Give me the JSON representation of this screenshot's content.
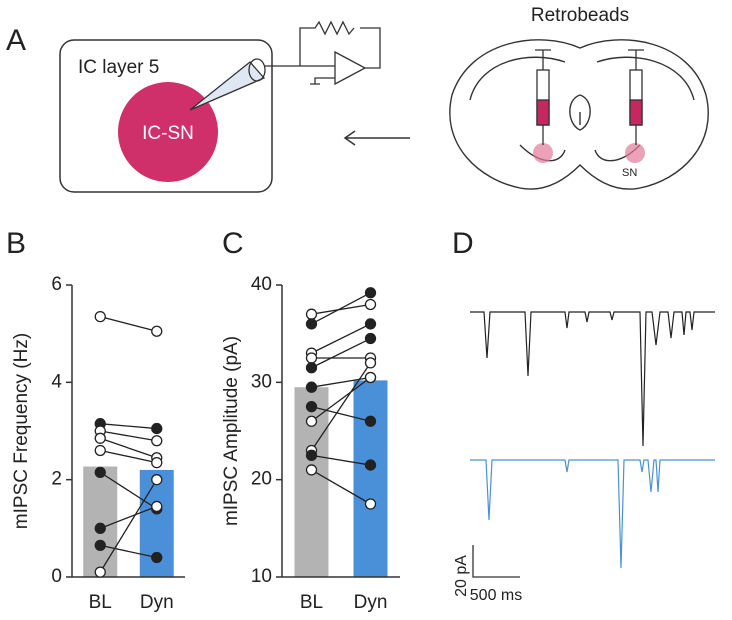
{
  "panels": {
    "a": "A",
    "b": "B",
    "c": "C",
    "d": "D"
  },
  "diagram": {
    "slice_label": "IC layer 5",
    "cell_label": "IC-SN",
    "injection_label": "Retrobeads",
    "region_label": "SN"
  },
  "traces": {
    "scale_y": "20 pA",
    "scale_x": "500 ms"
  },
  "chart_data": [
    {
      "type": "bar",
      "ylabel": "mIPSC Frequency (Hz)",
      "categories": [
        "BL",
        "Dyn"
      ],
      "values": [
        2.27,
        2.2
      ],
      "colors": [
        "#b3b3b3",
        "#4a90d9"
      ],
      "ylim": [
        0,
        6
      ],
      "yticks": [
        0,
        2,
        4,
        6
      ],
      "points": [
        [
          5.35,
          5.05
        ],
        [
          3.15,
          3.05
        ],
        [
          3.0,
          2.8
        ],
        [
          2.85,
          2.45
        ],
        [
          2.6,
          2.35
        ],
        [
          2.15,
          1.4
        ],
        [
          1.0,
          1.45
        ],
        [
          0.65,
          0.4
        ],
        [
          0.1,
          2.0
        ]
      ],
      "filled": [
        [
          false,
          false
        ],
        [
          true,
          true
        ],
        [
          false,
          false
        ],
        [
          false,
          false
        ],
        [
          false,
          false
        ],
        [
          true,
          true
        ],
        [
          true,
          false
        ],
        [
          true,
          true
        ],
        [
          false,
          false
        ]
      ]
    },
    {
      "type": "bar",
      "ylabel": "mIPSC Amplitude (pA)",
      "categories": [
        "BL",
        "Dyn"
      ],
      "values": [
        29.5,
        30.2
      ],
      "colors": [
        "#b3b3b3",
        "#4a90d9"
      ],
      "ylim": [
        10,
        40
      ],
      "yticks": [
        10,
        20,
        30,
        40
      ],
      "points": [
        [
          37,
          38
        ],
        [
          36,
          39.2
        ],
        [
          33,
          36
        ],
        [
          32.5,
          32.5
        ],
        [
          31.5,
          34.5
        ],
        [
          29.5,
          30.5
        ],
        [
          27.5,
          26
        ],
        [
          26,
          30.5
        ],
        [
          23,
          32
        ],
        [
          22.5,
          21.5
        ],
        [
          21,
          17.5
        ]
      ],
      "filled": [
        [
          false,
          false
        ],
        [
          true,
          true
        ],
        [
          false,
          true
        ],
        [
          false,
          false
        ],
        [
          true,
          true
        ],
        [
          true,
          false
        ],
        [
          true,
          true
        ],
        [
          false,
          false
        ],
        [
          false,
          false
        ],
        [
          true,
          true
        ],
        [
          false,
          false
        ]
      ]
    }
  ]
}
